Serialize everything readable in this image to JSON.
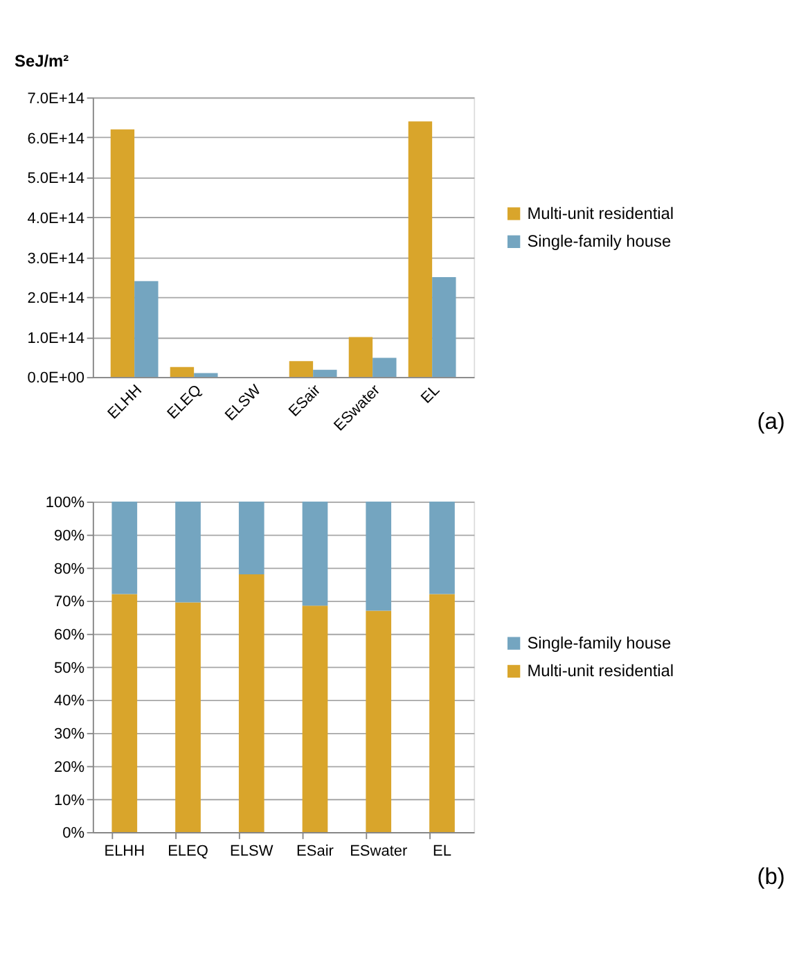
{
  "chart_data": [
    {
      "type": "bar",
      "ylabel": "SeJ/m²",
      "categories": [
        "ELHH",
        "ELEQ",
        "ELSW",
        "ESair",
        "ESwater",
        "EL"
      ],
      "series": [
        {
          "name": "Multi-unit residential",
          "color": "#d9a52b",
          "values": [
            620000000000000.0,
            25000000000000.0,
            0,
            40000000000000.0,
            100000000000000.0,
            640000000000000.0
          ]
        },
        {
          "name": "Single-family house",
          "color": "#74a5c0",
          "values": [
            240000000000000.0,
            10000000000000.0,
            0,
            18000000000000.0,
            48000000000000.0,
            250000000000000.0
          ]
        }
      ],
      "ylim": [
        0,
        700000000000000.0
      ],
      "yticks": [
        {
          "value": 0,
          "label": "0.0E+00"
        },
        {
          "value": 100000000000000.0,
          "label": "1.0E+14"
        },
        {
          "value": 200000000000000.0,
          "label": "2.0E+14"
        },
        {
          "value": 300000000000000.0,
          "label": "3.0E+14"
        },
        {
          "value": 400000000000000.0,
          "label": "4.0E+14"
        },
        {
          "value": 500000000000000.0,
          "label": "5.0E+14"
        },
        {
          "value": 600000000000000.0,
          "label": "6.0E+14"
        },
        {
          "value": 700000000000000.0,
          "label": "7.0E+14"
        }
      ],
      "grid": "y",
      "legend": "right",
      "annotations": [
        "(a)"
      ]
    },
    {
      "type": "bar",
      "stacked": true,
      "categories": [
        "ELHH",
        "ELEQ",
        "ELSW",
        "ESair",
        "ESwater",
        "EL"
      ],
      "series": [
        {
          "name": "Multi-unit residential",
          "color": "#d9a52b",
          "values": [
            72,
            69.5,
            78,
            68.5,
            67,
            72
          ]
        },
        {
          "name": "Single-family house",
          "color": "#74a5c0",
          "values": [
            28,
            30.5,
            22,
            31.5,
            33,
            28
          ]
        }
      ],
      "ylim": [
        0,
        100
      ],
      "yticks": [
        {
          "value": 0,
          "label": "0%"
        },
        {
          "value": 10,
          "label": "10%"
        },
        {
          "value": 20,
          "label": "20%"
        },
        {
          "value": 30,
          "label": "30%"
        },
        {
          "value": 40,
          "label": "40%"
        },
        {
          "value": 50,
          "label": "50%"
        },
        {
          "value": 60,
          "label": "60%"
        },
        {
          "value": 70,
          "label": "70%"
        },
        {
          "value": 80,
          "label": "80%"
        },
        {
          "value": 90,
          "label": "90%"
        },
        {
          "value": 100,
          "label": "100%"
        }
      ],
      "grid": "y",
      "legend": "right",
      "annotations": [
        "(b)"
      ]
    }
  ]
}
